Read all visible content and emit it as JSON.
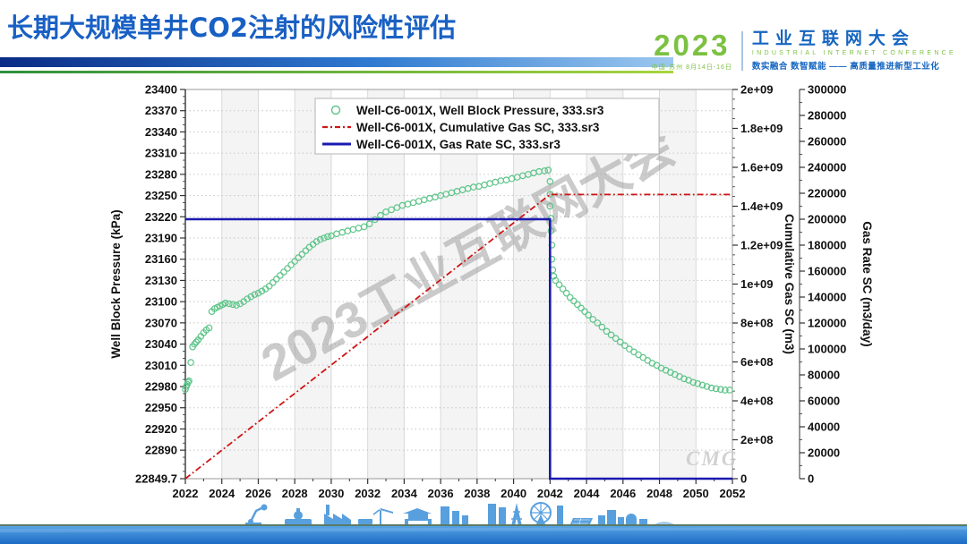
{
  "slide": {
    "title": "长期大规模单井CO2注射的风险性评估"
  },
  "logo": {
    "year": "2023",
    "venue": "中国·苏州 8月14日-16日",
    "name_cn": "工业互联网大会",
    "name_en": "INDUSTRIAL INTERNET CONFERENCE",
    "slogan": "数实融合 数智赋能 —— 高质量推进新型工业化",
    "green": "#7cc142",
    "blue": "#1565c0"
  },
  "watermark": {
    "diagonal_text": "2023工业互联网大会",
    "corner_logo": "CMG"
  },
  "chart_data": {
    "type": "line",
    "grid": true,
    "legend_position": "top-center",
    "x_axis": {
      "label": "",
      "range": [
        2022,
        2052
      ],
      "tick_values": [
        2022,
        2024,
        2026,
        2028,
        2030,
        2032,
        2034,
        2036,
        2038,
        2040,
        2042,
        2044,
        2046,
        2048,
        2050,
        2052
      ],
      "tick_labels": [
        "2022",
        "2024",
        "2026",
        "2028",
        "2030",
        "2032",
        "2034",
        "2036",
        "2038",
        "2040",
        "2042",
        "2044",
        "2046",
        "2048",
        "2050",
        "2052"
      ]
    },
    "y_left": {
      "label": "Well Block Pressure (kPa)",
      "range": [
        22849.7,
        23400
      ],
      "tick_values": [
        23400,
        23370,
        23340,
        23310,
        23280,
        23250,
        23220,
        23190,
        23160,
        23130,
        23100,
        23070,
        23040,
        23010,
        22980,
        22950,
        22920,
        22890,
        22849.7
      ],
      "tick_labels": [
        "23400",
        "23370",
        "23340",
        "23310",
        "23280",
        "23250",
        "23220",
        "23190",
        "23160",
        "23130",
        "23100",
        "23070",
        "23040",
        "23010",
        "22980",
        "22950",
        "22920",
        "22890",
        "22849.7"
      ]
    },
    "y_right1": {
      "label": "Cumulative Gas SC (m3)",
      "range": [
        0,
        2000000000
      ],
      "tick_values": [
        0,
        200000000,
        400000000,
        600000000,
        800000000,
        1000000000,
        1200000000,
        1400000000,
        1600000000,
        1800000000,
        2000000000
      ],
      "tick_labels": [
        "0",
        "2e+08",
        "4e+08",
        "6e+08",
        "8e+08",
        "1e+09",
        "1.2e+09",
        "1.4e+09",
        "1.6e+09",
        "1.8e+09",
        "2e+09"
      ]
    },
    "y_right2": {
      "label": "Gas Rate SC (m3/day)",
      "range": [
        0,
        300000
      ],
      "tick_values": [
        0,
        20000,
        40000,
        60000,
        80000,
        100000,
        120000,
        140000,
        160000,
        180000,
        200000,
        220000,
        240000,
        260000,
        280000,
        300000
      ],
      "tick_labels": [
        "0",
        "20000",
        "40000",
        "60000",
        "80000",
        "100000",
        "120000",
        "140000",
        "160000",
        "180000",
        "200000",
        "220000",
        "240000",
        "260000",
        "280000",
        "300000"
      ]
    },
    "series": [
      {
        "name": "Well-C6-001X, Well Block Pressure, 333.sr3",
        "axis": "left",
        "type": "scatter",
        "marker": "open-circle",
        "color": "#5cc488",
        "width": 1.2,
        "points": [
          [
            2022.0,
            22976
          ],
          [
            2022.05,
            22980
          ],
          [
            2022.1,
            22983
          ],
          [
            2022.15,
            22986
          ],
          [
            2022.2,
            22988
          ],
          [
            2022.3,
            23014
          ],
          [
            2022.4,
            23036
          ],
          [
            2022.5,
            23040
          ],
          [
            2022.6,
            23043
          ],
          [
            2022.7,
            23046
          ],
          [
            2022.85,
            23051
          ],
          [
            2023.0,
            23056
          ],
          [
            2023.15,
            23060
          ],
          [
            2023.3,
            23063
          ],
          [
            2023.45,
            23086
          ],
          [
            2023.6,
            23090
          ],
          [
            2023.75,
            23092
          ],
          [
            2023.9,
            23094
          ],
          [
            2024.05,
            23096
          ],
          [
            2024.2,
            23098
          ],
          [
            2024.4,
            23097
          ],
          [
            2024.6,
            23096
          ],
          [
            2024.8,
            23095
          ],
          [
            2025.0,
            23097
          ],
          [
            2025.2,
            23100
          ],
          [
            2025.4,
            23104
          ],
          [
            2025.6,
            23107
          ],
          [
            2025.8,
            23110
          ],
          [
            2026.0,
            23112
          ],
          [
            2026.2,
            23115
          ],
          [
            2026.4,
            23118
          ],
          [
            2026.6,
            23122
          ],
          [
            2026.8,
            23127
          ],
          [
            2027.0,
            23132
          ],
          [
            2027.2,
            23137
          ],
          [
            2027.4,
            23142
          ],
          [
            2027.6,
            23147
          ],
          [
            2027.8,
            23152
          ],
          [
            2028.0,
            23157
          ],
          [
            2028.2,
            23162
          ],
          [
            2028.4,
            23167
          ],
          [
            2028.6,
            23172
          ],
          [
            2028.8,
            23177
          ],
          [
            2029.0,
            23181
          ],
          [
            2029.2,
            23185
          ],
          [
            2029.4,
            23188
          ],
          [
            2029.6,
            23190
          ],
          [
            2029.8,
            23192
          ],
          [
            2030.0,
            23193
          ],
          [
            2030.3,
            23196
          ],
          [
            2030.6,
            23198
          ],
          [
            2030.9,
            23200
          ],
          [
            2031.2,
            23202
          ],
          [
            2031.5,
            23204
          ],
          [
            2031.8,
            23206
          ],
          [
            2032.1,
            23210
          ],
          [
            2032.4,
            23216
          ],
          [
            2032.7,
            23222
          ],
          [
            2033.0,
            23227
          ],
          [
            2033.3,
            23230
          ],
          [
            2033.6,
            23233
          ],
          [
            2033.9,
            23236
          ],
          [
            2034.2,
            23238
          ],
          [
            2034.5,
            23240
          ],
          [
            2034.8,
            23242
          ],
          [
            2035.1,
            23244
          ],
          [
            2035.4,
            23246
          ],
          [
            2035.7,
            23248
          ],
          [
            2036.0,
            23250
          ],
          [
            2036.3,
            23252
          ],
          [
            2036.6,
            23254
          ],
          [
            2036.9,
            23256
          ],
          [
            2037.2,
            23258
          ],
          [
            2037.5,
            23260
          ],
          [
            2037.8,
            23262
          ],
          [
            2038.1,
            23263
          ],
          [
            2038.4,
            23265
          ],
          [
            2038.7,
            23267
          ],
          [
            2039.0,
            23269
          ],
          [
            2039.3,
            23271
          ],
          [
            2039.6,
            23272
          ],
          [
            2039.9,
            23274
          ],
          [
            2040.2,
            23276
          ],
          [
            2040.5,
            23278
          ],
          [
            2040.8,
            23280
          ],
          [
            2041.1,
            23282
          ],
          [
            2041.4,
            23284
          ],
          [
            2041.7,
            23285
          ],
          [
            2041.9,
            23286
          ],
          [
            2042.0,
            23270
          ],
          [
            2042.0,
            23252
          ],
          [
            2042.0,
            23235
          ],
          [
            2042.05,
            23218
          ],
          [
            2042.05,
            23200
          ],
          [
            2042.1,
            23180
          ],
          [
            2042.1,
            23160
          ],
          [
            2042.15,
            23145
          ],
          [
            2042.2,
            23136
          ],
          [
            2042.3,
            23130
          ],
          [
            2042.5,
            23124
          ],
          [
            2042.7,
            23118
          ],
          [
            2042.9,
            23112
          ],
          [
            2043.1,
            23106
          ],
          [
            2043.3,
            23101
          ],
          [
            2043.5,
            23096
          ],
          [
            2043.7,
            23091
          ],
          [
            2043.9,
            23086
          ],
          [
            2044.1,
            23081
          ],
          [
            2044.35,
            23075
          ],
          [
            2044.6,
            23070
          ],
          [
            2044.85,
            23064
          ],
          [
            2045.1,
            23058
          ],
          [
            2045.35,
            23053
          ],
          [
            2045.6,
            23048
          ],
          [
            2045.85,
            23043
          ],
          [
            2046.1,
            23038
          ],
          [
            2046.35,
            23033
          ],
          [
            2046.6,
            23029
          ],
          [
            2046.85,
            23025
          ],
          [
            2047.1,
            23021
          ],
          [
            2047.35,
            23017
          ],
          [
            2047.6,
            23013
          ],
          [
            2047.85,
            23010
          ],
          [
            2048.1,
            23006
          ],
          [
            2048.35,
            23003
          ],
          [
            2048.6,
            23000
          ],
          [
            2048.85,
            22997
          ],
          [
            2049.1,
            22994
          ],
          [
            2049.35,
            22991
          ],
          [
            2049.6,
            22989
          ],
          [
            2049.85,
            22986
          ],
          [
            2050.1,
            22984
          ],
          [
            2050.35,
            22982
          ],
          [
            2050.6,
            22980
          ],
          [
            2050.85,
            22978
          ],
          [
            2051.1,
            22977
          ],
          [
            2051.35,
            22976
          ],
          [
            2051.6,
            22975
          ],
          [
            2051.85,
            22975
          ]
        ]
      },
      {
        "name": "Well-C6-001X, Cumulative Gas SC, 333.sr3",
        "axis": "right1",
        "type": "line",
        "dash": "dash-dot",
        "color": "#cf1515",
        "width": 1.8,
        "points": [
          [
            2022,
            0
          ],
          [
            2042,
            1460000000
          ],
          [
            2052,
            1460000000
          ]
        ]
      },
      {
        "name": "Well-C6-001X, Gas Rate SC, 333.sr3",
        "axis": "right2",
        "type": "line",
        "dash": "solid",
        "color": "#1b19b0",
        "width": 2.6,
        "points": [
          [
            2022,
            200000
          ],
          [
            2042,
            200000
          ],
          [
            2042,
            0
          ],
          [
            2052,
            0
          ]
        ]
      }
    ]
  }
}
